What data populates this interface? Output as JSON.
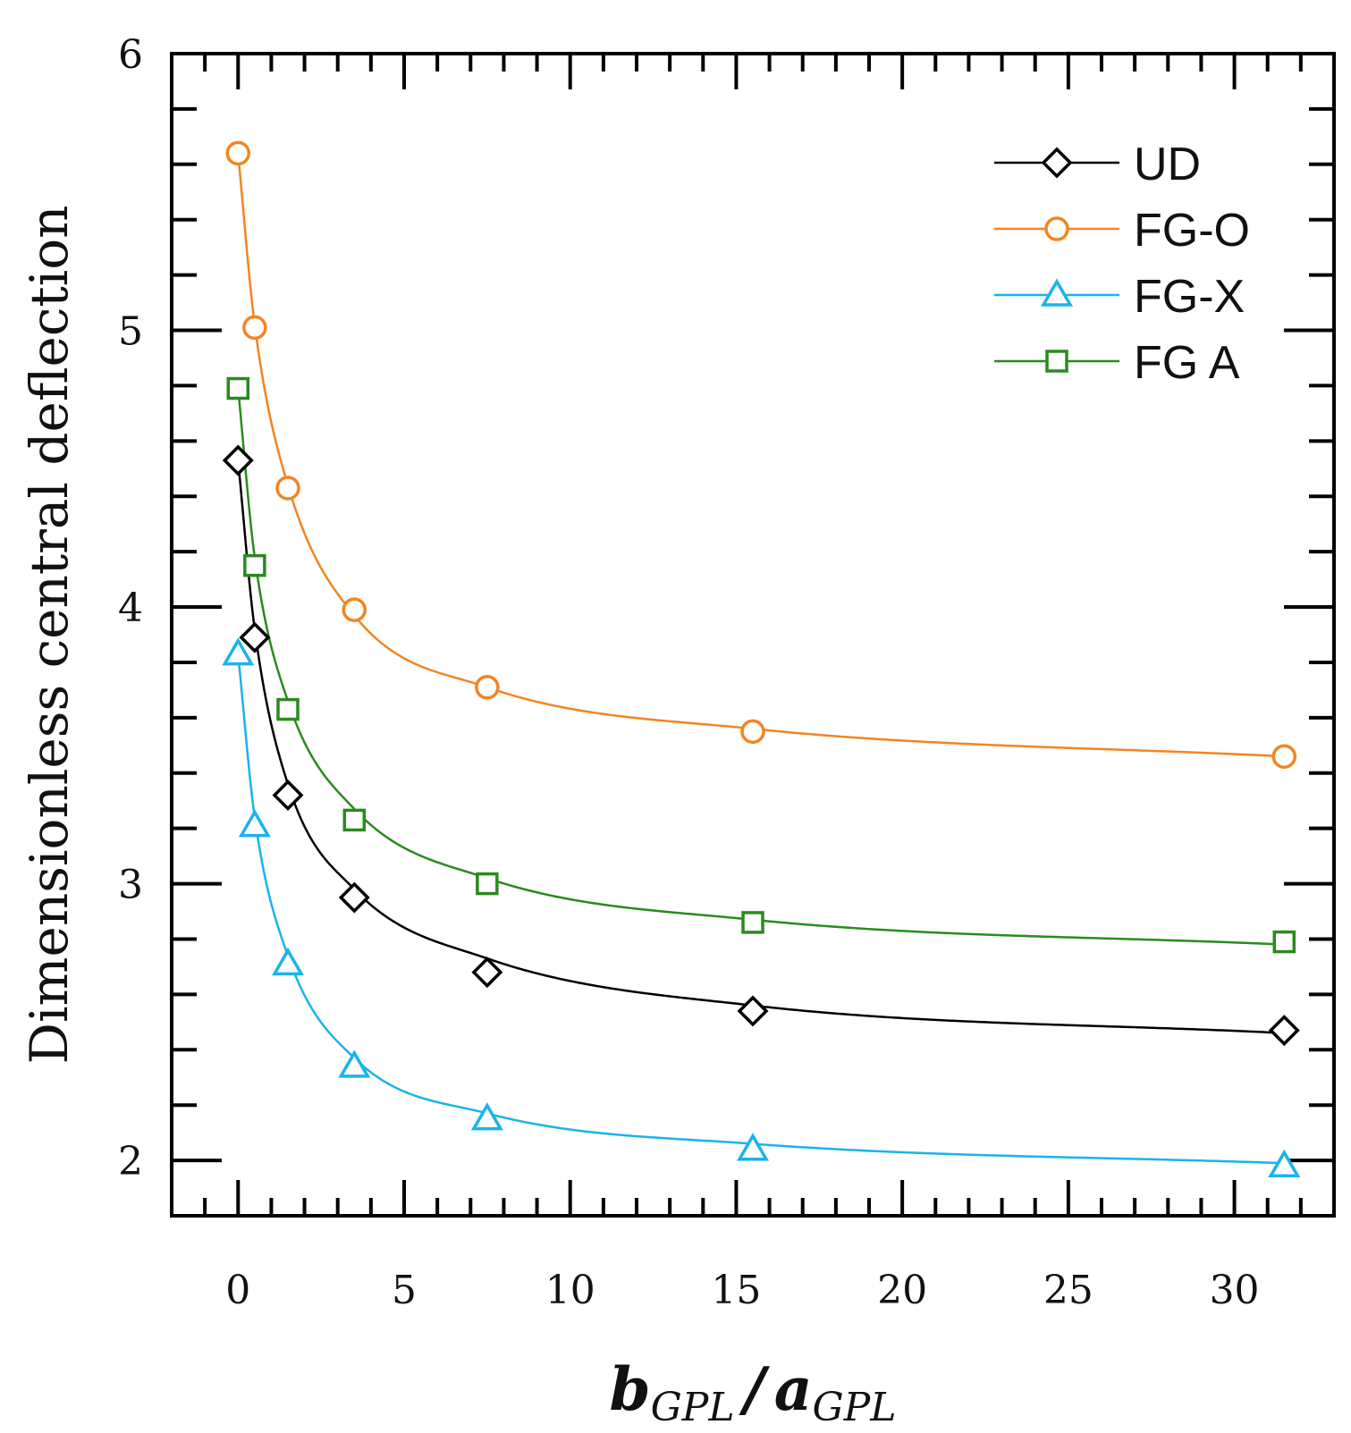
{
  "chart_data": {
    "type": "line",
    "title": "",
    "xlabel": "b_GPL / a_GPL",
    "xlabel_parts": {
      "b": "b",
      "a": "a",
      "sub": "GPL",
      "slash": "/"
    },
    "ylabel": "Dimensionless central deflection",
    "xlim": [
      -2,
      33
    ],
    "ylim": [
      1.8,
      6
    ],
    "xticks": [
      0,
      5,
      10,
      15,
      20,
      25,
      30
    ],
    "xtick_labels": [
      "0",
      "5",
      "10",
      "15",
      "20",
      "25",
      "30"
    ],
    "yticks": [
      2,
      3,
      4,
      5,
      6
    ],
    "ytick_labels": [
      "2",
      "3",
      "4",
      "5",
      "6"
    ],
    "legend_position": "top-right",
    "series": [
      {
        "name": "UD",
        "color": "#000000",
        "marker": "diamond",
        "x": [
          0,
          0.5,
          1.5,
          3.5,
          7.5,
          15.5,
          31.5
        ],
        "y": [
          4.53,
          3.89,
          3.32,
          2.95,
          2.68,
          2.54,
          2.47
        ],
        "curve_y": [
          4.53,
          3.92,
          3.36,
          2.98,
          2.73,
          2.56,
          2.46
        ]
      },
      {
        "name": "FG-O",
        "color": "#f28522",
        "marker": "circle",
        "x": [
          0,
          0.5,
          1.5,
          3.5,
          7.5,
          15.5,
          31.5
        ],
        "y": [
          5.64,
          5.01,
          4.43,
          3.99,
          3.71,
          3.55,
          3.46
        ],
        "curve_y": [
          5.64,
          5.02,
          4.44,
          3.97,
          3.71,
          3.56,
          3.46
        ]
      },
      {
        "name": "FG-X",
        "color": "#19b4ea",
        "marker": "triangle",
        "x": [
          0,
          0.5,
          1.5,
          3.5,
          7.5,
          15.5,
          31.5
        ],
        "y": [
          3.83,
          3.21,
          2.71,
          2.34,
          2.15,
          2.04,
          1.98
        ],
        "curve_y": [
          3.83,
          3.24,
          2.74,
          2.37,
          2.17,
          2.06,
          1.99
        ]
      },
      {
        "name": "FG A",
        "color": "#2a8a1e",
        "marker": "square",
        "x": [
          0,
          0.5,
          1.5,
          3.5,
          7.5,
          15.5,
          31.5
        ],
        "y": [
          4.79,
          4.15,
          3.63,
          3.23,
          3.0,
          2.86,
          2.79
        ],
        "curve_y": [
          4.79,
          4.18,
          3.66,
          3.27,
          3.02,
          2.87,
          2.78
        ]
      }
    ]
  }
}
